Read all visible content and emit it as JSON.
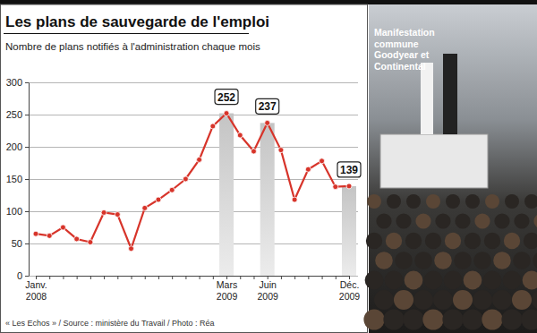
{
  "chart_data": {
    "type": "line",
    "title": "Les plans de sauvegarde de l'emploi",
    "subtitle": "Nombre de plans notifiés à l'administration chaque mois",
    "source": "« Les Echos » / Source : ministère du Travail / Photo : Réa",
    "photo_caption": "Manifestation\ncommune\nGoodyear et\nContinental",
    "categories": [
      "Janv.\n2008",
      null,
      null,
      null,
      null,
      null,
      null,
      null,
      null,
      null,
      null,
      null,
      null,
      null,
      "Mars\n2009",
      null,
      null,
      "Juin\n2009",
      null,
      null,
      null,
      null,
      null,
      "Déc.\n2009"
    ],
    "values": [
      65,
      62,
      75,
      57,
      52,
      98,
      95,
      42,
      105,
      118,
      133,
      150,
      180,
      232,
      252,
      218,
      193,
      237,
      195,
      118,
      165,
      178,
      138,
      139
    ],
    "value_labels": [
      null,
      null,
      null,
      null,
      null,
      null,
      null,
      null,
      null,
      null,
      null,
      null,
      null,
      null,
      "252",
      null,
      null,
      "237",
      null,
      null,
      null,
      null,
      null,
      "139"
    ],
    "color": "#d7342a",
    "marker": "circle",
    "ylim": [
      0,
      300
    ],
    "yticks": [
      0,
      50,
      100,
      150,
      200,
      250,
      300
    ],
    "grid": true
  }
}
